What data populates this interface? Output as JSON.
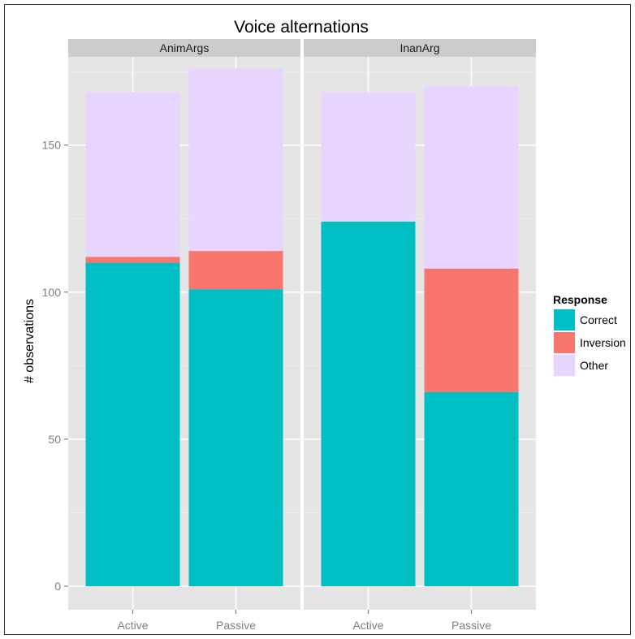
{
  "chart_data": {
    "type": "bar",
    "stacked": true,
    "title": "Voice alternations",
    "xlabel": "",
    "ylabel": "# observations",
    "ylim": [
      -8,
      180
    ],
    "yticks": [
      0,
      50,
      100,
      150
    ],
    "grid": true,
    "legend": {
      "title": "Response",
      "position": "right",
      "entries": [
        "Correct",
        "Inversion",
        "Other"
      ]
    },
    "categories": [
      "Active",
      "Passive"
    ],
    "colors": {
      "Correct": "#00bfc4",
      "Inversion": "#f8766d",
      "Other": "#e8d5ff"
    },
    "facets": [
      {
        "name": "AnimArgs",
        "series": [
          {
            "name": "Correct",
            "values": [
              110,
              101
            ]
          },
          {
            "name": "Inversion",
            "values": [
              2,
              13
            ]
          },
          {
            "name": "Other",
            "values": [
              56,
              62
            ]
          }
        ]
      },
      {
        "name": "InanArg",
        "series": [
          {
            "name": "Correct",
            "values": [
              124,
              66
            ]
          },
          {
            "name": "Inversion",
            "values": [
              0,
              42
            ]
          },
          {
            "name": "Other",
            "values": [
              44,
              62
            ]
          }
        ]
      }
    ]
  }
}
